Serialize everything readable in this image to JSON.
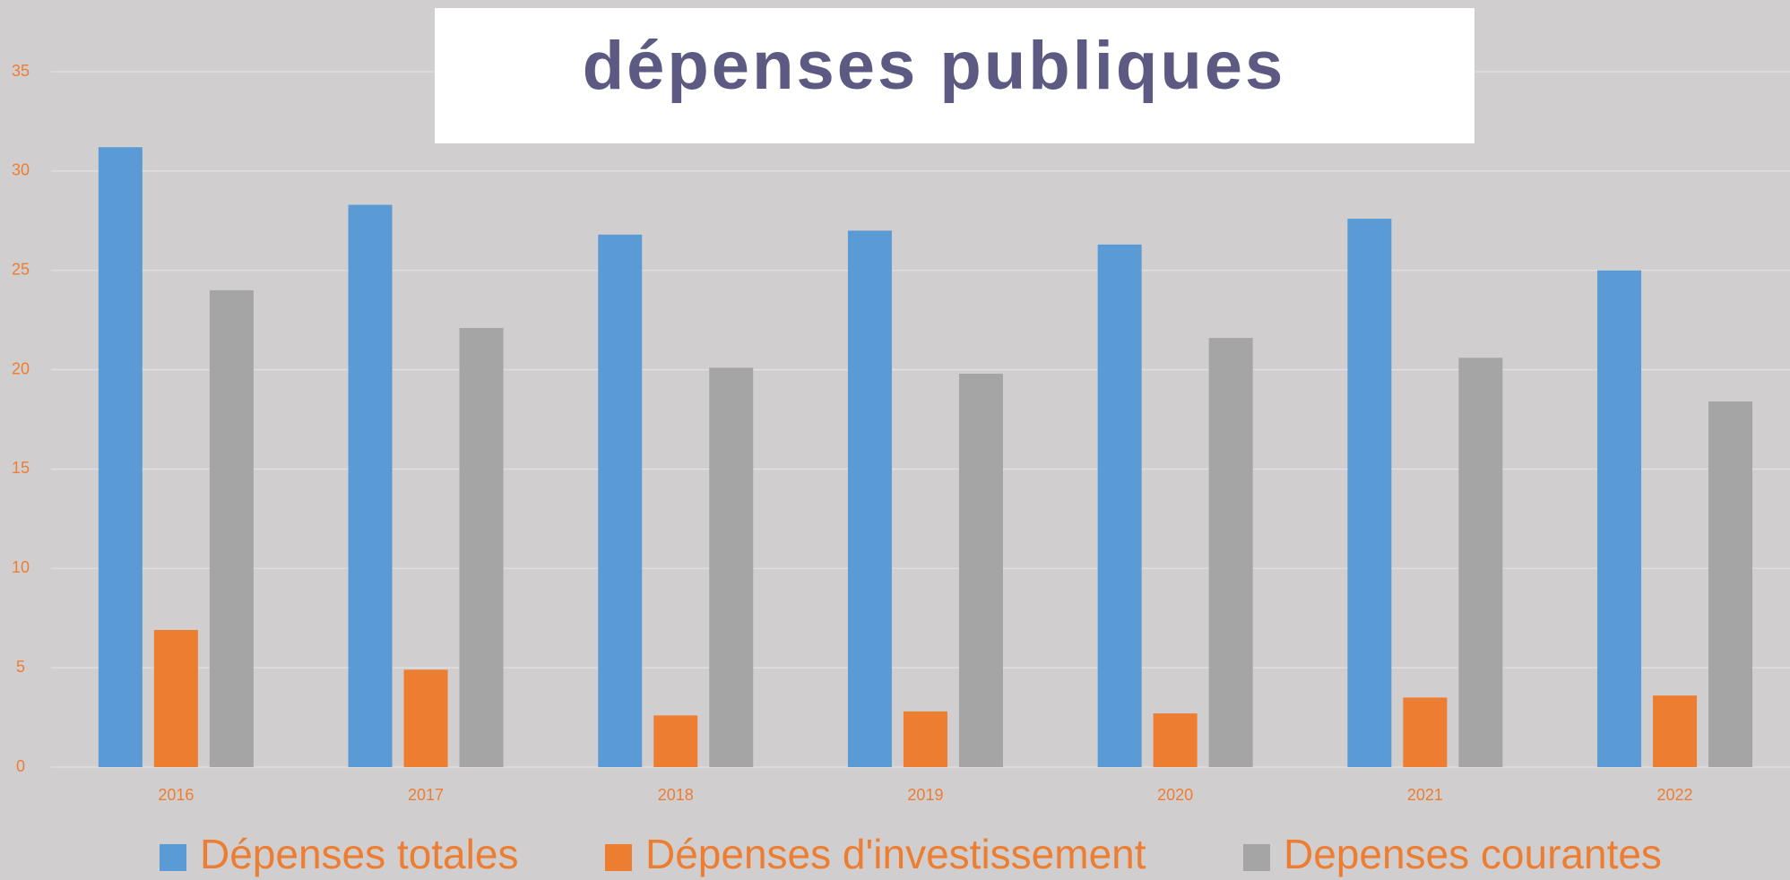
{
  "chart_data": {
    "type": "bar",
    "title": "dépenses publiques",
    "categories": [
      "2016",
      "2017",
      "2018",
      "2019",
      "2020",
      "2021",
      "2022"
    ],
    "series": [
      {
        "name": "Dépenses totales",
        "color": "#5b9bd5",
        "values": [
          31.2,
          28.3,
          26.8,
          27.0,
          26.3,
          27.6,
          25.0
        ]
      },
      {
        "name": "Dépenses d'investissement",
        "color": "#ed7d31",
        "values": [
          6.9,
          4.9,
          2.6,
          2.8,
          2.7,
          3.5,
          3.6
        ]
      },
      {
        "name": "Depenses courantes",
        "color": "#a5a5a5",
        "values": [
          24.0,
          22.1,
          20.1,
          19.8,
          21.6,
          20.6,
          18.4
        ]
      }
    ],
    "ylim": [
      0,
      35
    ],
    "yticks": [
      0,
      5,
      10,
      15,
      20,
      25,
      30,
      35
    ],
    "grid": true,
    "legend": "bottom"
  }
}
